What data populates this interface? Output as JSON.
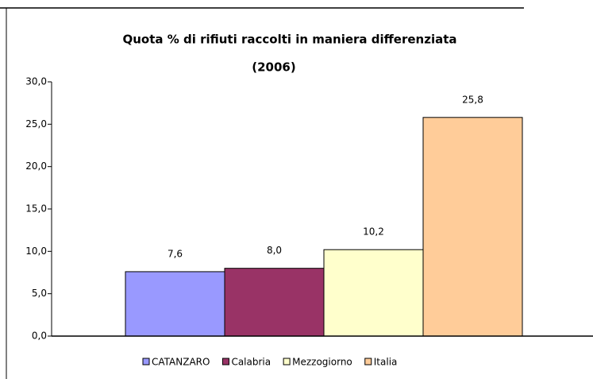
{
  "chart_data": {
    "type": "bar",
    "title": "Quota % di rifiuti raccolti in maniera differenziata",
    "subtitle": "(2006)",
    "series": [
      {
        "name": "CATANZARO",
        "color": "#9999ff",
        "values": [
          7.6
        ],
        "value_labels": [
          "7,6"
        ]
      },
      {
        "name": "Calabria",
        "color": "#993366",
        "values": [
          8.0
        ],
        "value_labels": [
          "8,0"
        ]
      },
      {
        "name": "Mezzogiorno",
        "color": "#ffffcc",
        "values": [
          10.2
        ],
        "value_labels": [
          "10,2"
        ]
      },
      {
        "name": "Italia",
        "color": "#ffcc99",
        "values": [
          25.8
        ],
        "value_labels": [
          "25,8"
        ]
      }
    ],
    "ylim": [
      0,
      30
    ],
    "yticks": [
      {
        "value": 0,
        "label": "0,0"
      },
      {
        "value": 5,
        "label": "5,0"
      },
      {
        "value": 10,
        "label": "10,0"
      },
      {
        "value": 15,
        "label": "15,0"
      },
      {
        "value": 20,
        "label": "20,0"
      },
      {
        "value": 25,
        "label": "25,0"
      },
      {
        "value": 30,
        "label": "30,0"
      }
    ],
    "legend": "bottom"
  }
}
